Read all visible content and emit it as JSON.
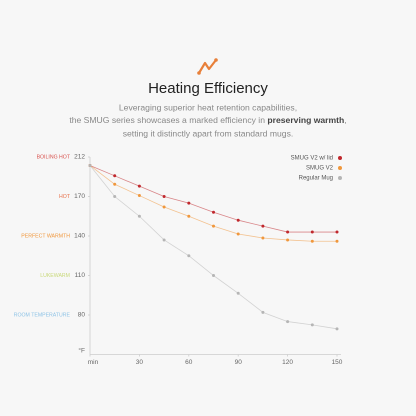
{
  "chart_data": {
    "type": "line",
    "title": "Heating Efficiency",
    "subtitle_line1": "Leveraging superior heat retention capabilities,",
    "subtitle_line2_start": "the SMUG series showcases a marked efficiency in ",
    "subtitle_bold": "preserving warmth",
    "subtitle_line2_end": ",",
    "subtitle_line3": "setting it distinctly apart from standard mugs.",
    "y_label": "°F",
    "x": [
      0,
      15,
      30,
      45,
      60,
      75,
      90,
      105,
      120,
      135,
      150
    ],
    "xlim": [
      0,
      150
    ],
    "xticks": [
      {
        "value": 0,
        "label": "min"
      },
      30,
      60,
      90,
      120,
      150
    ],
    "ylim": [
      50,
      212
    ],
    "yticks": [
      212,
      170,
      140,
      110,
      80
    ],
    "y_zone_labels": [
      "BOILING HOT",
      "HOT",
      "PERFECT WARMTH",
      "LUKEWARM",
      "ROOM TEMPERATURE"
    ],
    "y_zone_colors": [
      "#d9534f",
      "#e8704a",
      "#f0973c",
      "#c9d97a",
      "#8ec3e6"
    ],
    "legend": "top-right",
    "series": [
      {
        "name": "SMUG V2 w/ lid",
        "color": "#c0282d",
        "values": [
          203,
          192,
          181,
          170,
          165,
          158,
          152,
          147.5,
          143,
          143,
          143
        ]
      },
      {
        "name": "SMUG V2",
        "color": "#f0973c",
        "values": [
          203,
          183,
          171,
          162,
          155,
          147.5,
          141.5,
          138.5,
          137,
          136,
          136
        ]
      },
      {
        "name": "Regular Mug",
        "color": "#b5b5b5",
        "values": [
          203,
          170,
          155,
          137,
          125,
          110,
          96.5,
          82,
          75,
          72.5,
          69.5
        ]
      }
    ]
  }
}
